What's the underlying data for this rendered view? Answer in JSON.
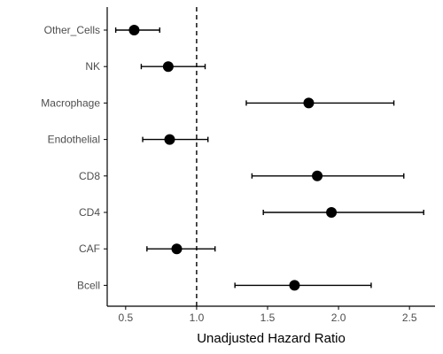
{
  "chart_data": {
    "type": "scatter",
    "subtype": "forest-plot",
    "xlabel": "Unadjusted Hazard Ratio",
    "ylabel": "",
    "title": "",
    "xlim": [
      0.37,
      2.68
    ],
    "x_ticks": [
      0.5,
      1.0,
      1.5,
      2.0,
      2.5
    ],
    "x_tick_labels": [
      "0.5",
      "1.0",
      "1.5",
      "2.0",
      "2.5"
    ],
    "reference_line": {
      "x": 1.0,
      "style": "dashed"
    },
    "grid": false,
    "legend": "none",
    "categories": [
      "Other_Cells",
      "NK",
      "Macrophage",
      "Endothelial",
      "CD8",
      "CD4",
      "CAF",
      "Bcell"
    ],
    "estimates": [
      0.56,
      0.8,
      1.79,
      0.81,
      1.85,
      1.95,
      0.86,
      1.69
    ],
    "lower": [
      0.43,
      0.61,
      1.35,
      0.62,
      1.39,
      1.47,
      0.65,
      1.27
    ],
    "upper": [
      0.74,
      1.06,
      2.39,
      1.08,
      2.46,
      2.6,
      1.13,
      2.23
    ],
    "colors": {
      "point": "#000000",
      "line": "#000000",
      "axis": "#000000",
      "text": "#4d4d4d"
    }
  }
}
